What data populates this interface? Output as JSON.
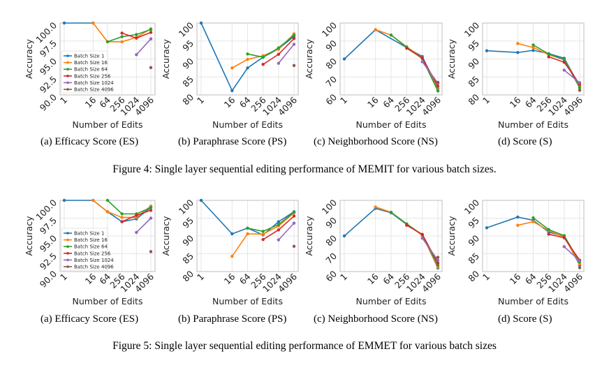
{
  "colors": {
    "Batch Size 1": "#1f77b4",
    "Batch Size 16": "#ff7f0e",
    "Batch Size 64": "#2ca02c",
    "Batch Size 256": "#d62728",
    "Batch Size 1024": "#9467bd",
    "Batch Size 4096": "#8c564b"
  },
  "figures": [
    {
      "caption": "Figure 4: Single layer sequential editing performance of MEMIT for various batch sizes.",
      "subcaptions": [
        "(a) Efficacy Score (ES)",
        "(b) Paraphrase Score (PS)",
        "(c) Neighborhood Score (NS)",
        "(d) Score (S)"
      ]
    },
    {
      "caption": "Figure 5: Single layer sequential editing performance of EMMET for various batch sizes",
      "subcaptions": [
        "(a) Efficacy Score (ES)",
        "(b) Paraphrase Score (PS)",
        "(c) Neighborhood Score (NS)",
        "(d) Score (S)"
      ]
    }
  ],
  "chart_data": [
    {
      "id": "fig4a",
      "type": "line",
      "title": "(a) Efficacy Score (ES)",
      "xlabel": "Number of Edits",
      "ylabel": "Accuracy",
      "x": [
        1,
        16,
        64,
        256,
        1024,
        4096
      ],
      "xscale": "log",
      "ylim": [
        90,
        100
      ],
      "yticks": [
        "90.0",
        "92.5",
        "95.0",
        "97.5",
        "100.0"
      ],
      "ytick_values": [
        90,
        92.5,
        95,
        97.5,
        100
      ],
      "grid": true,
      "legend": "center-left",
      "series": [
        {
          "name": "Batch Size 1",
          "values": [
            100,
            100,
            null,
            null,
            null,
            null
          ]
        },
        {
          "name": "Batch Size 16",
          "values": [
            null,
            100,
            97.4,
            97.4,
            98.0,
            99.2
          ]
        },
        {
          "name": "Batch Size 64",
          "values": [
            null,
            null,
            97.4,
            98.1,
            98.4,
            99.1
          ]
        },
        {
          "name": "Batch Size 256",
          "values": [
            null,
            null,
            null,
            98.6,
            97.9,
            98.7
          ]
        },
        {
          "name": "Batch Size 1024",
          "values": [
            null,
            null,
            null,
            null,
            95.6,
            97.8
          ]
        },
        {
          "name": "Batch Size 4096",
          "values": [
            null,
            null,
            null,
            null,
            null,
            93.8
          ]
        }
      ]
    },
    {
      "id": "fig4b",
      "type": "line",
      "title": "(b) Paraphrase Score (PS)",
      "xlabel": "Number of Edits",
      "ylabel": "Accuracy",
      "x": [
        1,
        16,
        64,
        256,
        1024,
        4096
      ],
      "xscale": "log",
      "ylim": [
        80,
        100
      ],
      "yticks": [
        "80",
        "85",
        "90",
        "95",
        "100"
      ],
      "ytick_values": [
        80,
        85,
        90,
        95,
        100
      ],
      "grid": true,
      "legend": "none",
      "series": [
        {
          "name": "Batch Size 1",
          "values": [
            100,
            81.2,
            87.5,
            90.5,
            92.8,
            96.3
          ]
        },
        {
          "name": "Batch Size 16",
          "values": [
            null,
            87.5,
            89.9,
            90.9,
            92.7,
            97.0
          ]
        },
        {
          "name": "Batch Size 64",
          "values": [
            null,
            null,
            91.4,
            90.5,
            93.1,
            96.6
          ]
        },
        {
          "name": "Batch Size 256",
          "values": [
            null,
            null,
            null,
            88.5,
            91.3,
            95.7
          ]
        },
        {
          "name": "Batch Size 1024",
          "values": [
            null,
            null,
            null,
            null,
            88.8,
            94.1
          ]
        },
        {
          "name": "Batch Size 4096",
          "values": [
            null,
            null,
            null,
            null,
            null,
            88.2
          ]
        }
      ]
    },
    {
      "id": "fig4c",
      "type": "line",
      "title": "(c) Neighborhood Score (NS)",
      "xlabel": "Number of Edits",
      "ylabel": "Accuracy",
      "x": [
        1,
        16,
        64,
        256,
        1024,
        4096
      ],
      "xscale": "log",
      "ylim": [
        60,
        100
      ],
      "yticks": [
        "60",
        "70",
        "80",
        "90",
        "100"
      ],
      "ytick_values": [
        60,
        70,
        80,
        90,
        100
      ],
      "grid": true,
      "legend": "none",
      "series": [
        {
          "name": "Batch Size 1",
          "values": [
            80.0,
            96.3,
            null,
            null,
            81.4,
            63.5
          ]
        },
        {
          "name": "Batch Size 16",
          "values": [
            null,
            96.3,
            93.3,
            86.8,
            80.6,
            63.0
          ]
        },
        {
          "name": "Batch Size 64",
          "values": [
            null,
            null,
            93.3,
            86.5,
            80.2,
            62.2
          ]
        },
        {
          "name": "Batch Size 256",
          "values": [
            null,
            null,
            null,
            86.0,
            80.5,
            65.0
          ]
        },
        {
          "name": "Batch Size 1024",
          "values": [
            null,
            null,
            null,
            null,
            78.5,
            66.5
          ]
        },
        {
          "name": "Batch Size 4096",
          "values": [
            null,
            null,
            null,
            null,
            null,
            67.0
          ]
        }
      ]
    },
    {
      "id": "fig4d",
      "type": "line",
      "title": "(d) Score (S)",
      "xlabel": "Number of Edits",
      "ylabel": "Accuracy",
      "x": [
        1,
        16,
        64,
        256,
        1024,
        4096
      ],
      "xscale": "log",
      "ylim": [
        80,
        100
      ],
      "yticks": [
        "80",
        "85",
        "90",
        "95",
        "100"
      ],
      "ytick_values": [
        80,
        85,
        90,
        95,
        100
      ],
      "grid": true,
      "legend": "none",
      "series": [
        {
          "name": "Batch Size 1",
          "values": [
            92.3,
            91.8,
            92.4,
            91.5,
            90.2,
            82.5
          ]
        },
        {
          "name": "Batch Size 16",
          "values": [
            null,
            94.3,
            93.2,
            91.2,
            89.8,
            82.5
          ]
        },
        {
          "name": "Batch Size 64",
          "values": [
            null,
            null,
            93.9,
            91.4,
            89.8,
            82.0
          ]
        },
        {
          "name": "Batch Size 256",
          "values": [
            null,
            null,
            null,
            90.6,
            89.1,
            83.0
          ]
        },
        {
          "name": "Batch Size 1024",
          "values": [
            null,
            null,
            null,
            null,
            86.9,
            83.4
          ]
        },
        {
          "name": "Batch Size 4096",
          "values": [
            null,
            null,
            null,
            null,
            null,
            81.3
          ]
        }
      ]
    },
    {
      "id": "fig5a",
      "type": "line",
      "title": "(a) Efficacy Score (ES)",
      "xlabel": "Number of Edits",
      "ylabel": "Accuracy",
      "x": [
        1,
        16,
        64,
        256,
        1024,
        4096
      ],
      "xscale": "log",
      "ylim": [
        90,
        100
      ],
      "yticks": [
        "90.0",
        "92.5",
        "95.0",
        "97.5",
        "100.0"
      ],
      "ytick_values": [
        90,
        92.5,
        95,
        97.5,
        100
      ],
      "grid": true,
      "legend": "center-left",
      "series": [
        {
          "name": "Batch Size 1",
          "values": [
            100,
            100,
            98.4,
            97.0,
            97.4,
            99.0
          ]
        },
        {
          "name": "Batch Size 16",
          "values": [
            null,
            100,
            98.4,
            97.6,
            97.6,
            99.2
          ]
        },
        {
          "name": "Batch Size 64",
          "values": [
            null,
            null,
            100,
            98.1,
            98.1,
            99.0
          ]
        },
        {
          "name": "Batch Size 256",
          "values": [
            null,
            null,
            null,
            97.0,
            97.9,
            98.6
          ]
        },
        {
          "name": "Batch Size 1024",
          "values": [
            null,
            null,
            null,
            null,
            95.5,
            97.5
          ]
        },
        {
          "name": "Batch Size 4096",
          "values": [
            null,
            null,
            null,
            null,
            null,
            92.8
          ]
        }
      ]
    },
    {
      "id": "fig5b",
      "type": "line",
      "title": "(b) Paraphrase Score (PS)",
      "xlabel": "Number of Edits",
      "ylabel": "Accuracy",
      "x": [
        1,
        16,
        64,
        256,
        1024,
        4096
      ],
      "xscale": "log",
      "ylim": [
        80,
        100
      ],
      "yticks": [
        "80",
        "85",
        "90",
        "95",
        "100"
      ],
      "ytick_values": [
        80,
        85,
        90,
        95,
        100
      ],
      "grid": true,
      "legend": "none",
      "series": [
        {
          "name": "Batch Size 1",
          "values": [
            100,
            90.6,
            92.2,
            90.3,
            94.0,
            96.8
          ]
        },
        {
          "name": "Batch Size 16",
          "values": [
            null,
            84.3,
            90.6,
            90.5,
            92.8,
            96.5
          ]
        },
        {
          "name": "Batch Size 64",
          "values": [
            null,
            null,
            92.2,
            91.3,
            93.2,
            96.7
          ]
        },
        {
          "name": "Batch Size 256",
          "values": [
            null,
            null,
            null,
            89.0,
            91.7,
            95.6
          ]
        },
        {
          "name": "Batch Size 1024",
          "values": [
            null,
            null,
            null,
            null,
            88.9,
            93.6
          ]
        },
        {
          "name": "Batch Size 4096",
          "values": [
            null,
            null,
            null,
            null,
            null,
            87.1
          ]
        }
      ]
    },
    {
      "id": "fig5c",
      "type": "line",
      "title": "(c) Neighborhood Score (NS)",
      "xlabel": "Number of Edits",
      "ylabel": "Accuracy",
      "x": [
        1,
        16,
        64,
        256,
        1024,
        4096
      ],
      "xscale": "log",
      "ylim": [
        60,
        100
      ],
      "yticks": [
        "60",
        "70",
        "80",
        "90",
        "100"
      ],
      "ytick_values": [
        60,
        70,
        80,
        90,
        100
      ],
      "grid": true,
      "legend": "none",
      "series": [
        {
          "name": "Batch Size 1",
          "values": [
            80.0,
            95.5,
            93.0,
            86.5,
            80.6,
            62.0
          ]
        },
        {
          "name": "Batch Size 16",
          "values": [
            null,
            96.3,
            93.3,
            86.8,
            80.3,
            62.5
          ]
        },
        {
          "name": "Batch Size 64",
          "values": [
            null,
            null,
            93.3,
            86.8,
            80.6,
            63.5
          ]
        },
        {
          "name": "Batch Size 256",
          "values": [
            null,
            null,
            null,
            86.0,
            80.9,
            64.8
          ]
        },
        {
          "name": "Batch Size 1024",
          "values": [
            null,
            null,
            null,
            null,
            78.8,
            66.3
          ]
        },
        {
          "name": "Batch Size 4096",
          "values": [
            null,
            null,
            null,
            null,
            null,
            68.0
          ]
        }
      ]
    },
    {
      "id": "fig5d",
      "type": "line",
      "title": "(d) Score (S)",
      "xlabel": "Number of Edits",
      "ylabel": "Accuracy",
      "x": [
        1,
        16,
        64,
        256,
        1024,
        4096
      ],
      "xscale": "log",
      "ylim": [
        80,
        100
      ],
      "yticks": [
        "80",
        "85",
        "90",
        "95",
        "100"
      ],
      "ytick_values": [
        80,
        85,
        90,
        95,
        100
      ],
      "grid": true,
      "legend": "none",
      "series": [
        {
          "name": "Batch Size 1",
          "values": [
            92.3,
            95.3,
            94.4,
            91.1,
            89.9,
            81.8
          ]
        },
        {
          "name": "Batch Size 16",
          "values": [
            null,
            93.0,
            94.0,
            91.5,
            89.7,
            82.1
          ]
        },
        {
          "name": "Batch Size 64",
          "values": [
            null,
            null,
            95.1,
            91.8,
            90.1,
            82.7
          ]
        },
        {
          "name": "Batch Size 256",
          "values": [
            null,
            null,
            null,
            90.5,
            89.5,
            83.2
          ]
        },
        {
          "name": "Batch Size 1024",
          "values": [
            null,
            null,
            null,
            null,
            87.0,
            83.0
          ]
        },
        {
          "name": "Batch Size 4096",
          "values": [
            null,
            null,
            null,
            null,
            null,
            81.1
          ]
        }
      ]
    }
  ]
}
